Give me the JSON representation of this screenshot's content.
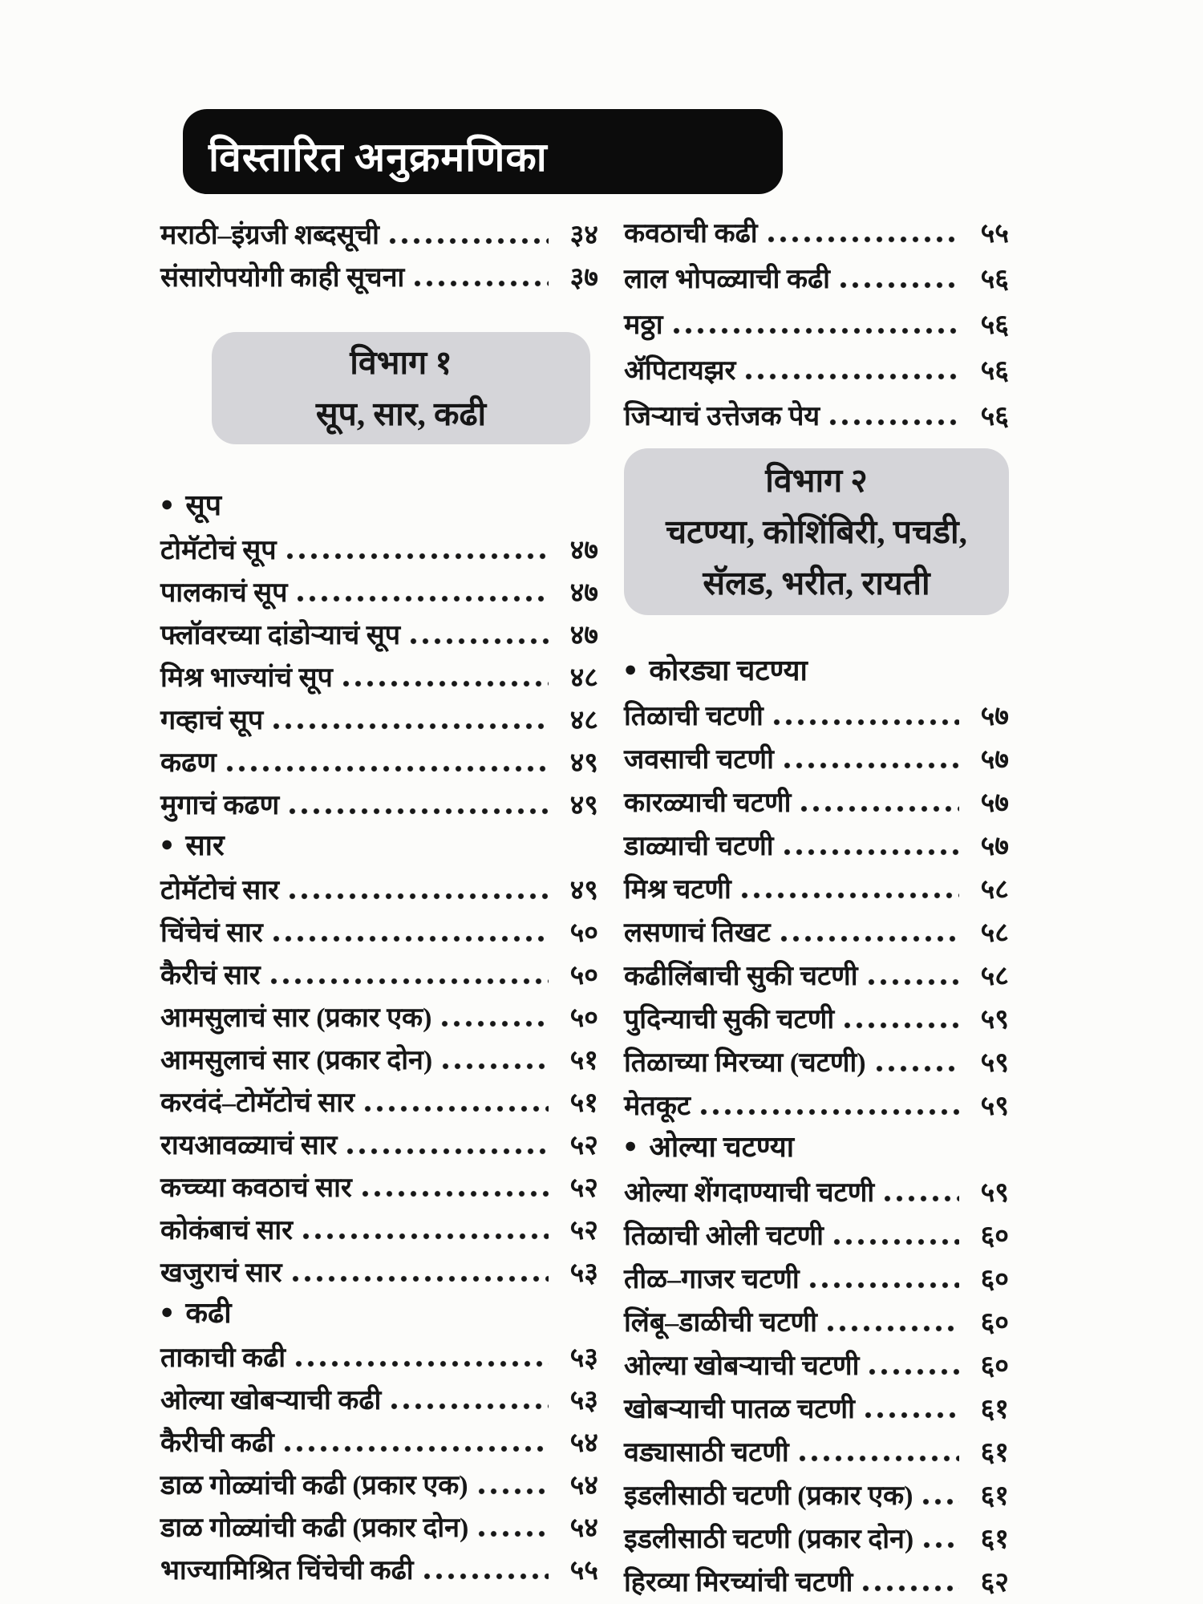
{
  "page_title": "विस्तारित अनुक्रमणिका",
  "icons": {
    "bullet": "●"
  },
  "colors": {
    "title_box_bg": "#0c0c0c",
    "title_text": "#ffffff",
    "section_box_bg": "#d5d5d9",
    "body_text": "#161616",
    "page_bg": "#fcfcfa"
  },
  "columns": {
    "left": {
      "front_entries": [
        {
          "label": "मराठी–इंग्रजी शब्दसूची",
          "page": "३४"
        },
        {
          "label": "संसारोपयोगी काही सूचना",
          "page": "३७"
        }
      ],
      "section_box": {
        "lines": [
          "विभाग १",
          "सूप, सार, कढी"
        ]
      },
      "groups": [
        {
          "heading": "सूप",
          "items": [
            {
              "label": "टोमॅटोचं सूप",
              "page": "४७"
            },
            {
              "label": "पालकाचं सूप",
              "page": "४७"
            },
            {
              "label": "फ्लॉवरच्या दांडोऱ्याचं सूप",
              "page": "४७"
            },
            {
              "label": "मिश्र भाज्यांचं सूप",
              "page": "४८"
            },
            {
              "label": "गव्हाचं सूप",
              "page": "४८"
            },
            {
              "label": "कढण",
              "page": "४९"
            },
            {
              "label": "मुगाचं कढण",
              "page": "४९"
            }
          ]
        },
        {
          "heading": "सार",
          "items": [
            {
              "label": "टोमॅटोचं सार",
              "page": "४९"
            },
            {
              "label": "चिंचेचं सार",
              "page": "५०"
            },
            {
              "label": "कैरीचं सार",
              "page": "५०"
            },
            {
              "label": "आमसुलाचं सार (प्रकार एक)",
              "page": "५०"
            },
            {
              "label": "आमसुलाचं सार (प्रकार दोन)",
              "page": "५१"
            },
            {
              "label": "करवंदं–टोमॅटोचं सार",
              "page": "५१"
            },
            {
              "label": "रायआवळ्याचं सार",
              "page": "५२"
            },
            {
              "label": "कच्च्या कवठाचं सार",
              "page": "५२"
            },
            {
              "label": "कोकंबाचं सार",
              "page": "५२"
            },
            {
              "label": "खजुराचं सार",
              "page": "५३"
            }
          ]
        },
        {
          "heading": "कढी",
          "items": [
            {
              "label": "ताकाची कढी",
              "page": "५३"
            },
            {
              "label": "ओल्या खोबऱ्याची कढी",
              "page": "५३"
            },
            {
              "label": "कैरीची कढी",
              "page": "५४"
            },
            {
              "label": "डाळ गोळ्यांची कढी (प्रकार एक)",
              "page": "५४"
            },
            {
              "label": "डाळ गोळ्यांची कढी (प्रकार दोन)",
              "page": "५४"
            },
            {
              "label": "भाज्यामिश्रित चिंचेची कढी",
              "page": "५५"
            }
          ]
        }
      ]
    },
    "right": {
      "top_entries": [
        {
          "label": "कवठाची कढी",
          "page": "५५"
        },
        {
          "label": "लाल भोपळ्याची कढी",
          "page": "५६"
        },
        {
          "label": "मठ्ठा",
          "page": "५६"
        },
        {
          "label": "ॲपिटायझर",
          "page": "५६"
        },
        {
          "label": "जिऱ्याचं उत्तेजक पेय",
          "page": "५६"
        }
      ],
      "section_box": {
        "lines": [
          "विभाग २",
          "चटण्या, कोशिंबिरी, पचडी,",
          "सॅलड, भरीत, रायती"
        ]
      },
      "groups": [
        {
          "heading": "कोरड्या चटण्या",
          "items": [
            {
              "label": "तिळाची चटणी",
              "page": "५७"
            },
            {
              "label": "जवसाची चटणी",
              "page": "५७"
            },
            {
              "label": "कारळ्याची चटणी",
              "page": "५७"
            },
            {
              "label": "डाळ्याची चटणी",
              "page": "५७"
            },
            {
              "label": "मिश्र चटणी",
              "page": "५८"
            },
            {
              "label": "लसणाचं तिखट",
              "page": "५८"
            },
            {
              "label": "कढीलिंबाची सुकी चटणी",
              "page": "५८"
            },
            {
              "label": "पुदिन्याची सुकी चटणी",
              "page": "५९"
            },
            {
              "label": "तिळाच्या मिरच्या (चटणी)",
              "page": "५९"
            },
            {
              "label": "मेतकूट",
              "page": "५९"
            }
          ]
        },
        {
          "heading": "ओल्या चटण्या",
          "items": [
            {
              "label": "ओल्या शेंगदाण्याची चटणी",
              "page": "५९"
            },
            {
              "label": "तिळाची ओली चटणी",
              "page": "६०"
            },
            {
              "label": "तीळ–गाजर चटणी",
              "page": "६०"
            },
            {
              "label": "लिंबू–डाळीची चटणी",
              "page": "६०"
            },
            {
              "label": "ओल्या खोबऱ्याची चटणी",
              "page": "६०"
            },
            {
              "label": "खोबऱ्याची पातळ चटणी",
              "page": "६१"
            },
            {
              "label": "वड्यासाठी चटणी",
              "page": "६१"
            },
            {
              "label": "इडलीसाठी चटणी (प्रकार एक)",
              "page": "६१"
            },
            {
              "label": "इडलीसाठी चटणी (प्रकार दोन)",
              "page": "६१"
            },
            {
              "label": "हिरव्या मिरच्यांची चटणी",
              "page": "६२"
            }
          ]
        }
      ]
    }
  }
}
